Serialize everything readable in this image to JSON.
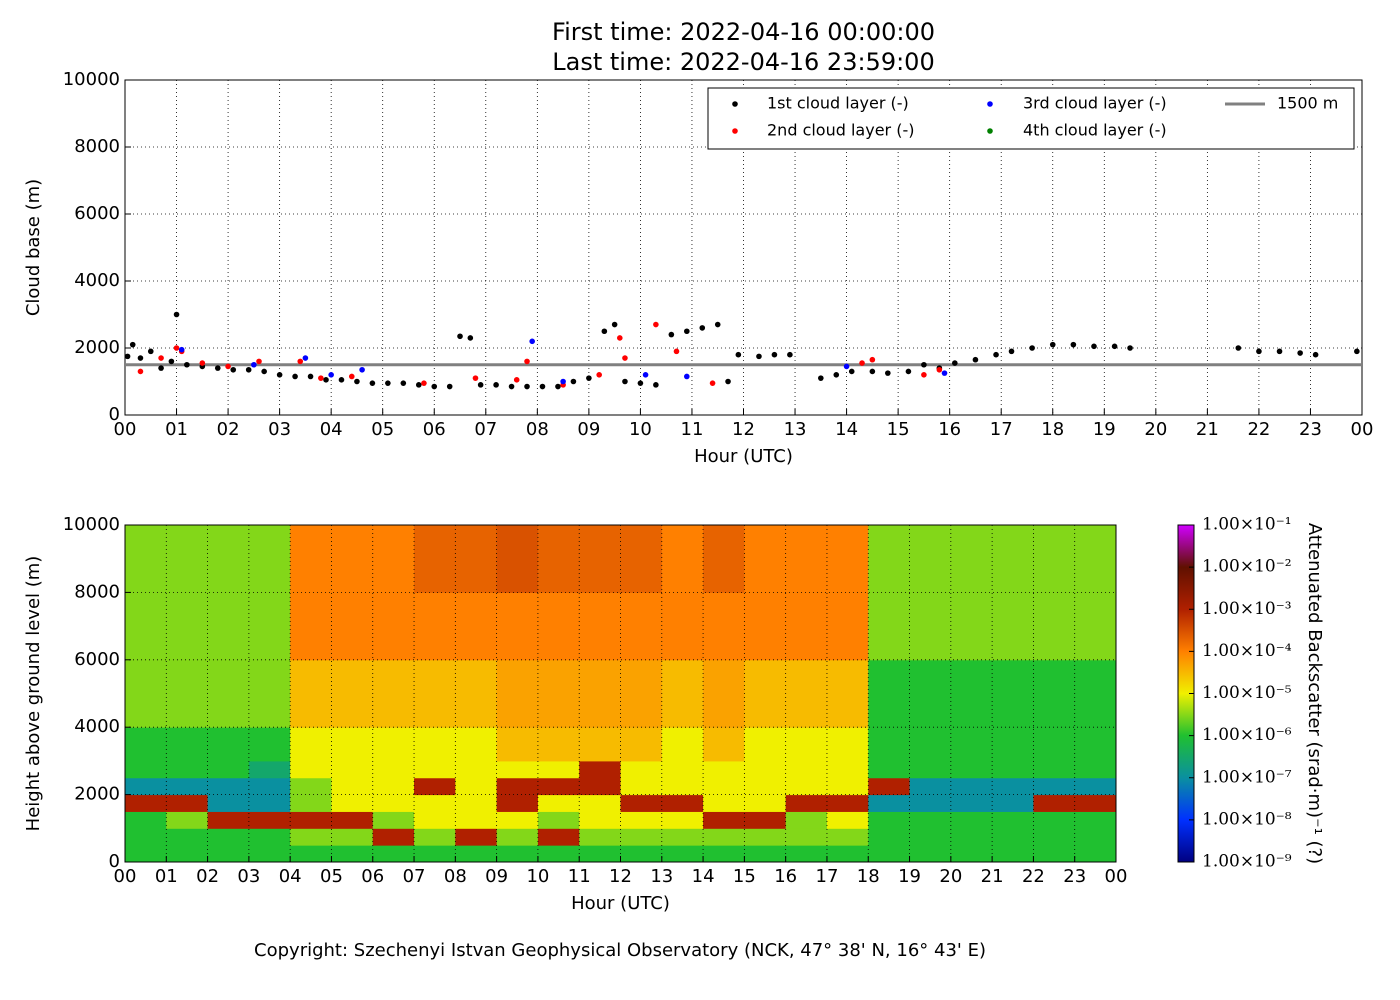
{
  "chart_data": [
    {
      "type": "scatter",
      "title": "First time: 2022-04-16 00:00:00",
      "subtitle": "Last time: 2022-04-16 23:59:00",
      "xlabel": "Hour (UTC)",
      "ylabel": "Cloud base (m)",
      "xlim": [
        0,
        24
      ],
      "xticks": [
        {
          "value": 0,
          "label": "00"
        },
        {
          "value": 1,
          "label": "01"
        },
        {
          "value": 2,
          "label": "02"
        },
        {
          "value": 3,
          "label": "03"
        },
        {
          "value": 4,
          "label": "04"
        },
        {
          "value": 5,
          "label": "05"
        },
        {
          "value": 6,
          "label": "06"
        },
        {
          "value": 7,
          "label": "07"
        },
        {
          "value": 8,
          "label": "08"
        },
        {
          "value": 9,
          "label": "09"
        },
        {
          "value": 10,
          "label": "10"
        },
        {
          "value": 11,
          "label": "11"
        },
        {
          "value": 12,
          "label": "12"
        },
        {
          "value": 13,
          "label": "13"
        },
        {
          "value": 14,
          "label": "14"
        },
        {
          "value": 15,
          "label": "15"
        },
        {
          "value": 16,
          "label": "16"
        },
        {
          "value": 17,
          "label": "17"
        },
        {
          "value": 18,
          "label": "18"
        },
        {
          "value": 19,
          "label": "19"
        },
        {
          "value": 20,
          "label": "20"
        },
        {
          "value": 21,
          "label": "21"
        },
        {
          "value": 22,
          "label": "22"
        },
        {
          "value": 23,
          "label": "23"
        },
        {
          "value": 24,
          "label": "00"
        }
      ],
      "ylim": [
        0,
        10000
      ],
      "yticks": [
        0,
        2000,
        4000,
        6000,
        8000,
        10000
      ],
      "grid": true,
      "legend": "upper right",
      "series": [
        {
          "name": "1st cloud layer (-)",
          "color": "#000000",
          "x": [
            0.05,
            0.15,
            0.3,
            0.5,
            0.7,
            0.9,
            1.0,
            1.2,
            1.5,
            1.8,
            2.1,
            2.4,
            2.7,
            3.0,
            3.3,
            3.6,
            3.9,
            4.2,
            4.5,
            4.8,
            5.1,
            5.4,
            5.7,
            6.0,
            6.3,
            6.5,
            6.7,
            6.9,
            7.2,
            7.5,
            7.8,
            8.1,
            8.4,
            8.7,
            9.0,
            9.3,
            9.5,
            9.7,
            10.0,
            10.3,
            10.6,
            10.9,
            11.2,
            11.5,
            11.7,
            11.9,
            12.3,
            12.6,
            12.9,
            13.5,
            13.8,
            14.1,
            14.5,
            14.8,
            15.2,
            15.5,
            15.8,
            16.1,
            16.5,
            16.9,
            17.2,
            17.6,
            18.0,
            18.4,
            18.8,
            19.2,
            19.5,
            21.6,
            22.0,
            22.4,
            22.8,
            23.1,
            23.9
          ],
          "values": [
            1750,
            2100,
            1700,
            1900,
            1400,
            1600,
            3000,
            1500,
            1450,
            1400,
            1350,
            1350,
            1300,
            1200,
            1150,
            1150,
            1050,
            1050,
            1000,
            950,
            950,
            950,
            900,
            850,
            850,
            2350,
            2300,
            900,
            900,
            850,
            850,
            850,
            850,
            1000,
            1100,
            2500,
            2700,
            1000,
            950,
            900,
            2400,
            2500,
            2600,
            2700,
            1000,
            1800,
            1750,
            1800,
            1800,
            1100,
            1200,
            1300,
            1300,
            1250,
            1300,
            1500,
            1400,
            1550,
            1650,
            1800,
            1900,
            2000,
            2100,
            2100,
            2050,
            2050,
            2000,
            2000,
            1900,
            1900,
            1850,
            1800,
            1900
          ]
        },
        {
          "name": "2nd cloud layer (-)",
          "color": "#ff0000",
          "x": [
            0.3,
            0.7,
            1.0,
            1.1,
            1.5,
            2.0,
            2.6,
            3.4,
            3.8,
            4.4,
            5.8,
            6.8,
            7.6,
            7.8,
            8.5,
            9.2,
            9.6,
            9.7,
            10.3,
            10.7,
            11.4,
            14.3,
            14.5,
            15.5,
            15.8
          ],
          "values": [
            1300,
            1700,
            2000,
            1900,
            1550,
            1450,
            1600,
            1600,
            1100,
            1150,
            950,
            1100,
            1050,
            1600,
            900,
            1200,
            2300,
            1700,
            2700,
            1900,
            950,
            1550,
            1650,
            1200,
            1350
          ]
        },
        {
          "name": "3rd cloud layer (-)",
          "color": "#0000ff",
          "x": [
            1.1,
            2.5,
            3.5,
            4.0,
            4.6,
            7.9,
            8.5,
            10.1,
            10.9,
            14.0,
            15.9
          ],
          "values": [
            1950,
            1500,
            1700,
            1200,
            1350,
            2200,
            1000,
            1200,
            1150,
            1450,
            1250
          ]
        },
        {
          "name": "4th cloud layer (-)",
          "color": "#008000",
          "x": [],
          "values": []
        }
      ],
      "hline": {
        "name": "1500 m",
        "value": 1500,
        "color": "#808080"
      }
    },
    {
      "type": "heatmap",
      "xlabel": "Hour (UTC)",
      "ylabel": "Height above ground level (m)",
      "xlim": [
        0,
        24
      ],
      "xticks": [
        {
          "value": 0,
          "label": "00"
        },
        {
          "value": 1,
          "label": "01"
        },
        {
          "value": 2,
          "label": "02"
        },
        {
          "value": 3,
          "label": "03"
        },
        {
          "value": 4,
          "label": "04"
        },
        {
          "value": 5,
          "label": "05"
        },
        {
          "value": 6,
          "label": "06"
        },
        {
          "value": 7,
          "label": "07"
        },
        {
          "value": 8,
          "label": "08"
        },
        {
          "value": 9,
          "label": "09"
        },
        {
          "value": 10,
          "label": "10"
        },
        {
          "value": 11,
          "label": "11"
        },
        {
          "value": 12,
          "label": "12"
        },
        {
          "value": 13,
          "label": "13"
        },
        {
          "value": 14,
          "label": "14"
        },
        {
          "value": 15,
          "label": "15"
        },
        {
          "value": 16,
          "label": "16"
        },
        {
          "value": 17,
          "label": "17"
        },
        {
          "value": 18,
          "label": "18"
        },
        {
          "value": 19,
          "label": "19"
        },
        {
          "value": 20,
          "label": "20"
        },
        {
          "value": 21,
          "label": "21"
        },
        {
          "value": 22,
          "label": "22"
        },
        {
          "value": 23,
          "label": "23"
        },
        {
          "value": 24,
          "label": "00"
        }
      ],
      "ylim": [
        0,
        10000
      ],
      "yticks": [
        0,
        2000,
        4000,
        6000,
        8000,
        10000
      ],
      "grid": true,
      "xbins": [
        0,
        1,
        2,
        3,
        4,
        5,
        6,
        7,
        8,
        9,
        10,
        11,
        12,
        13,
        14,
        15,
        16,
        17,
        18,
        19,
        20,
        21,
        22,
        23,
        24
      ],
      "ybins": [
        0,
        500,
        1000,
        1500,
        2000,
        2500,
        3000,
        4000,
        6000,
        8000,
        10000
      ],
      "z": [
        [
          1e-06,
          1e-06,
          1e-06,
          1e-06,
          1e-06,
          1e-06,
          1e-06,
          1e-06,
          1e-06,
          1e-06,
          1e-06,
          1e-06,
          1e-06,
          1e-06,
          1e-06,
          1e-06,
          1e-06,
          1e-06,
          1e-06,
          1e-06,
          1e-06,
          1e-06,
          1e-06,
          1e-06
        ],
        [
          1e-06,
          1e-06,
          1e-06,
          1e-06,
          3e-06,
          3e-06,
          0.001,
          3e-06,
          0.001,
          3e-06,
          0.001,
          3e-06,
          3e-06,
          3e-06,
          3e-06,
          3e-06,
          3e-06,
          3e-06,
          1e-06,
          1e-06,
          1e-06,
          1e-06,
          1e-06,
          1e-06
        ],
        [
          1e-06,
          3e-06,
          0.001,
          0.001,
          0.001,
          0.001,
          3e-06,
          1e-05,
          1e-05,
          1e-05,
          3e-06,
          1e-05,
          1e-05,
          1e-05,
          0.001,
          0.001,
          3e-06,
          1e-05,
          1e-06,
          1e-06,
          1e-06,
          1e-06,
          1e-06,
          1e-06
        ],
        [
          0.001,
          0.001,
          1e-07,
          1e-07,
          3e-06,
          1e-05,
          1e-05,
          1e-05,
          1e-05,
          0.001,
          1e-05,
          1e-05,
          0.001,
          0.001,
          1e-05,
          1e-05,
          0.001,
          0.001,
          1e-07,
          1e-07,
          1e-07,
          1e-07,
          0.001,
          0.001
        ],
        [
          1e-07,
          1e-07,
          1e-07,
          1e-07,
          3e-06,
          1e-05,
          1e-05,
          0.001,
          1e-05,
          0.001,
          0.001,
          0.001,
          1e-05,
          1e-05,
          1e-05,
          1e-05,
          1e-05,
          1e-05,
          0.001,
          1e-07,
          1e-07,
          1e-07,
          1e-07,
          1e-07
        ],
        [
          1e-06,
          1e-06,
          1e-06,
          3e-07,
          1e-05,
          1e-05,
          1e-05,
          1e-05,
          1e-05,
          1e-05,
          1e-05,
          0.001,
          1e-05,
          1e-05,
          1e-05,
          1e-05,
          1e-05,
          1e-05,
          1e-06,
          1e-06,
          1e-06,
          1e-06,
          1e-06,
          1e-06
        ],
        [
          1e-06,
          1e-06,
          1e-06,
          1e-06,
          1e-05,
          1e-05,
          1e-05,
          1e-05,
          1e-05,
          3e-05,
          3e-05,
          3e-05,
          3e-05,
          1e-05,
          3e-05,
          1e-05,
          1e-05,
          1e-05,
          1e-06,
          1e-06,
          1e-06,
          1e-06,
          1e-06,
          1e-06
        ],
        [
          3e-06,
          3e-06,
          3e-06,
          3e-06,
          3e-05,
          3e-05,
          3e-05,
          3e-05,
          3e-05,
          5e-05,
          5e-05,
          5e-05,
          5e-05,
          3e-05,
          5e-05,
          3e-05,
          3e-05,
          3e-05,
          1e-06,
          1e-06,
          1e-06,
          1e-06,
          1e-06,
          1e-06
        ],
        [
          3e-06,
          3e-06,
          3e-06,
          3e-06,
          0.0001,
          0.0001,
          0.0001,
          0.0001,
          0.0001,
          0.0001,
          0.0001,
          0.0001,
          0.0001,
          0.0001,
          0.0001,
          0.0001,
          0.0001,
          0.0001,
          3e-06,
          3e-06,
          3e-06,
          3e-06,
          3e-06,
          3e-06
        ],
        [
          3e-06,
          3e-06,
          3e-06,
          3e-06,
          0.0001,
          0.0001,
          0.0001,
          0.0002,
          0.0002,
          0.0003,
          0.0002,
          0.0002,
          0.0002,
          0.0001,
          0.0002,
          0.0001,
          0.0001,
          0.0001,
          3e-06,
          3e-06,
          3e-06,
          3e-06,
          3e-06,
          3e-06
        ]
      ],
      "colorbar_label": "Attenuated Backscatter (srad·m)⁻¹ (?)",
      "log_scale_color": true,
      "clim": [
        1e-09,
        0.1
      ],
      "cticks": [
        {
          "value": 1e-09,
          "label": "1.00×10⁻⁹"
        },
        {
          "value": 1e-08,
          "label": "1.00×10⁻⁸"
        },
        {
          "value": 1e-07,
          "label": "1.00×10⁻⁷"
        },
        {
          "value": 1e-06,
          "label": "1.00×10⁻⁶"
        },
        {
          "value": 1e-05,
          "label": "1.00×10⁻⁵"
        },
        {
          "value": 0.0001,
          "label": "1.00×10⁻⁴"
        },
        {
          "value": 0.001,
          "label": "1.00×10⁻³"
        },
        {
          "value": 0.01,
          "label": "1.00×10⁻²"
        },
        {
          "value": 0.1,
          "label": "1.00×10⁻¹"
        }
      ],
      "colormap": [
        "#000080",
        "#0030ff",
        "#0a90a0",
        "#20c030",
        "#f0f000",
        "#ff8000",
        "#b02000",
        "#601000",
        "#d000ff"
      ]
    }
  ],
  "footer": "Copyright: Szechenyi Istvan Geophysical Observatory (NCK, 47° 38' N, 16° 43' E)"
}
